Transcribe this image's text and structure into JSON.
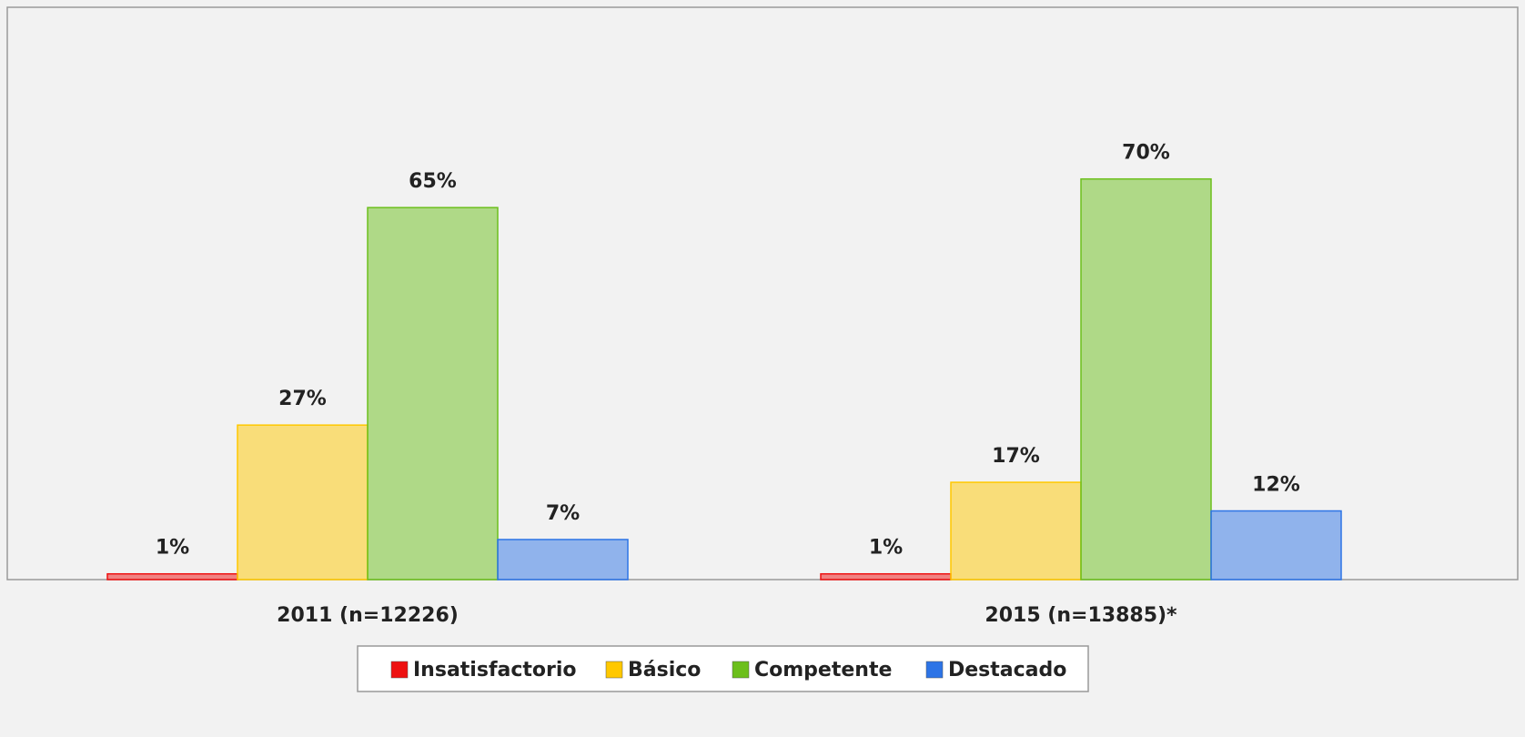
{
  "chart_data": {
    "type": "bar",
    "categories": [
      "2011 (n=12226)",
      "2015 (n=13885)*"
    ],
    "series": [
      {
        "name": "Insatisfactorio",
        "color": "#ee1111",
        "values": [
          1,
          1
        ],
        "value_labels": [
          "1%",
          "1%"
        ]
      },
      {
        "name": "Básico",
        "color": "#ffc800",
        "values": [
          27,
          17
        ],
        "value_labels": [
          "27%",
          "17%"
        ]
      },
      {
        "name": "Competente",
        "color": "#6cbf1c",
        "values": [
          65,
          70
        ],
        "value_labels": [
          "65%",
          "70%"
        ]
      },
      {
        "name": "Destacado",
        "color": "#2d74e6",
        "values": [
          7,
          12
        ],
        "value_labels": [
          "7%",
          "12%"
        ]
      }
    ],
    "ylim": [
      0,
      100
    ],
    "legend": "bottom"
  }
}
